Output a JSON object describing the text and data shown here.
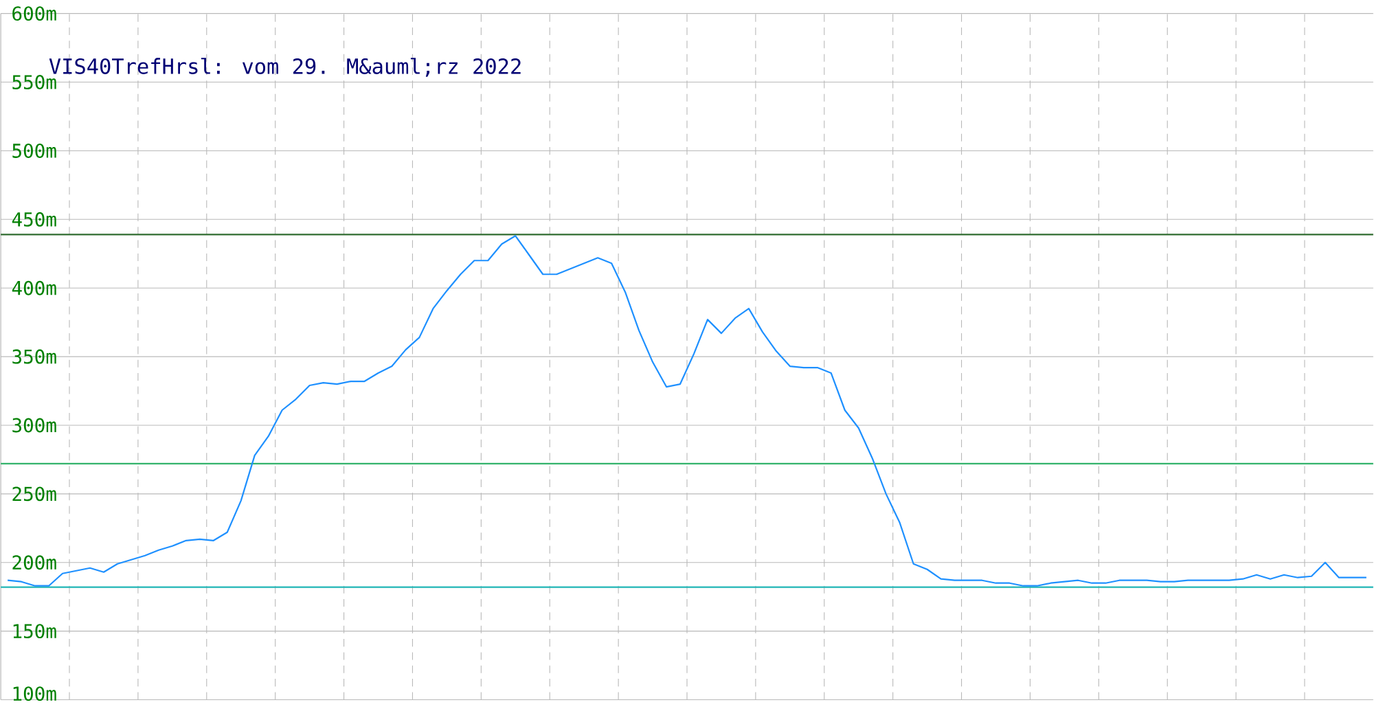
{
  "chart_data": {
    "type": "line",
    "title": "VIS40TrefHrsl: vom 29. M&auml;rz 2022",
    "categories": [
      null,
      null,
      null,
      null,
      null,
      null,
      null,
      null,
      null,
      null,
      null,
      null,
      null,
      null,
      null,
      null,
      null,
      null,
      null,
      null,
      null,
      null,
      null,
      null,
      null,
      null,
      null,
      null,
      null,
      null,
      null,
      null,
      null,
      null,
      null,
      null,
      null,
      null,
      null,
      null,
      null,
      null,
      null,
      null,
      null,
      null,
      null,
      null,
      null,
      null,
      null,
      null,
      null,
      null,
      null,
      null,
      null,
      null,
      null,
      null,
      null,
      null,
      null,
      null,
      null,
      null,
      null,
      null,
      null,
      null,
      null,
      null,
      null,
      null,
      null,
      null,
      null,
      null,
      null,
      null,
      null,
      null,
      null,
      null,
      null,
      null,
      null,
      null,
      null,
      null,
      null,
      null,
      null,
      null,
      null,
      null,
      null,
      null,
      null,
      null
    ],
    "series": [
      {
        "color": "#1e90ff",
        "values": [
          187,
          186,
          183,
          183,
          192,
          194,
          196,
          193,
          199,
          202,
          205,
          209,
          212,
          216,
          217,
          216,
          222,
          245,
          278,
          292,
          311,
          319,
          329,
          331,
          330,
          332,
          332,
          338,
          343,
          355,
          364,
          385,
          398,
          410,
          420,
          420,
          432,
          438,
          424,
          410,
          410,
          414,
          418,
          422,
          418,
          397,
          369,
          346,
          328,
          330,
          352,
          377,
          367,
          378,
          385,
          368,
          354,
          343,
          342,
          342,
          338,
          311,
          298,
          276,
          250,
          229,
          199,
          195,
          188,
          187,
          187,
          187,
          185,
          185,
          183,
          183,
          185,
          186,
          187,
          185,
          185,
          187,
          187,
          187,
          186,
          186,
          187,
          187,
          187,
          187,
          188,
          191,
          188,
          191,
          189,
          190,
          200,
          189,
          189,
          189
        ]
      }
    ],
    "ylim": [
      100,
      600
    ],
    "yticks": [
      {
        "value": 100,
        "label": "100m"
      },
      {
        "value": 150,
        "label": "150m"
      },
      {
        "value": 200,
        "label": "200m"
      },
      {
        "value": 250,
        "label": "250m"
      },
      {
        "value": 300,
        "label": "300m"
      },
      {
        "value": 350,
        "label": "350m"
      },
      {
        "value": 400,
        "label": "400m"
      },
      {
        "value": 450,
        "label": "450m"
      },
      {
        "value": 500,
        "label": "500m"
      },
      {
        "value": 550,
        "label": "550m"
      },
      {
        "value": 600,
        "label": "600m"
      }
    ],
    "grid": true,
    "ref_lines": [
      {
        "axis": "y",
        "value": 439,
        "color": "#2f6b2f"
      },
      {
        "axis": "y",
        "value": 272,
        "color": "#33b36b"
      },
      {
        "axis": "y",
        "value": 182,
        "color": "#1fb5b5"
      }
    ]
  }
}
